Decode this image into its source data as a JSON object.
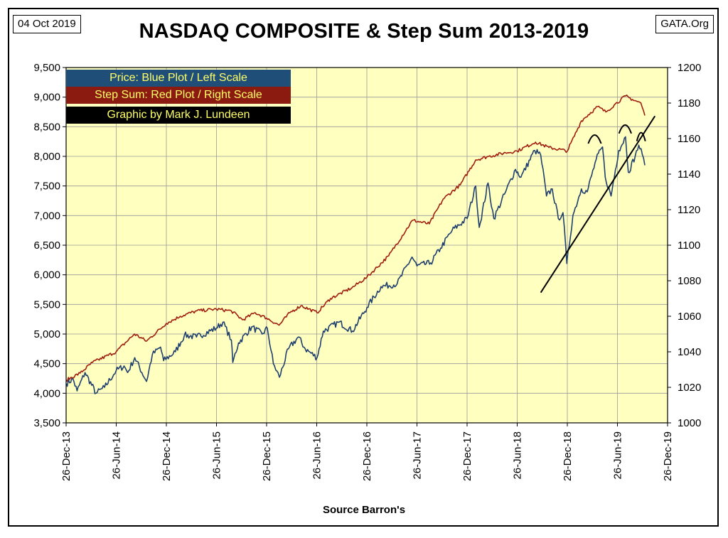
{
  "header": {
    "date": "04 Oct 2019",
    "site": "GATA.Org"
  },
  "legend": {
    "line1": "Price:  Blue Plot / Left Scale",
    "line2": "Step Sum: Red Plot / Right Scale",
    "line3": "Graphic by Mark J. Lundeen"
  },
  "chart_data": {
    "type": "line",
    "title": "NASDAQ COMPOSITE & Step Sum 2013-2019",
    "xlabel": "Source Barron's",
    "grid": true,
    "background_color": "#ffffc0",
    "x_ticks": [
      "26-Dec-13",
      "26-Jun-14",
      "26-Dec-14",
      "26-Jun-15",
      "26-Dec-15",
      "26-Jun-16",
      "26-Dec-16",
      "26-Jun-17",
      "26-Dec-17",
      "26-Jun-18",
      "26-Dec-18",
      "26-Jun-19",
      "26-Dec-19"
    ],
    "y_left": {
      "min": 3500,
      "max": 9500,
      "step": 500,
      "ticks": [
        "3,500",
        "4,000",
        "4,500",
        "5,000",
        "5,500",
        "6,000",
        "6,500",
        "7,000",
        "7,500",
        "8,000",
        "8,500",
        "9,000",
        "9,500"
      ]
    },
    "y_right": {
      "min": 1000,
      "max": 1200,
      "step": 20,
      "ticks": [
        "1000",
        "1020",
        "1040",
        "1060",
        "1080",
        "1100",
        "1120",
        "1140",
        "1160",
        "1180",
        "1200"
      ]
    },
    "series": [
      {
        "color": "#1f3f6e",
        "axis": "left",
        "points": [
          [
            "2013-12-26",
            4160
          ],
          [
            "2014-01-20",
            4240
          ],
          [
            "2014-02-04",
            4040
          ],
          [
            "2014-03-05",
            4350
          ],
          [
            "2014-04-14",
            4000
          ],
          [
            "2014-05-15",
            4100
          ],
          [
            "2014-06-26",
            4380
          ],
          [
            "2014-07-25",
            4460
          ],
          [
            "2014-08-07",
            4350
          ],
          [
            "2014-09-02",
            4600
          ],
          [
            "2014-10-15",
            4200
          ],
          [
            "2014-11-05",
            4650
          ],
          [
            "2014-12-05",
            4780
          ],
          [
            "2014-12-16",
            4550
          ],
          [
            "2015-01-28",
            4700
          ],
          [
            "2015-03-02",
            4980
          ],
          [
            "2015-04-15",
            4950
          ],
          [
            "2015-06-26",
            5100
          ],
          [
            "2015-07-20",
            5200
          ],
          [
            "2015-08-20",
            4900
          ],
          [
            "2015-08-25",
            4520
          ],
          [
            "2015-09-15",
            4850
          ],
          [
            "2015-11-02",
            5120
          ],
          [
            "2015-12-10",
            5000
          ],
          [
            "2015-12-29",
            5100
          ],
          [
            "2016-01-20",
            4500
          ],
          [
            "2016-02-11",
            4270
          ],
          [
            "2016-03-15",
            4750
          ],
          [
            "2016-04-20",
            4950
          ],
          [
            "2016-05-15",
            4750
          ],
          [
            "2016-06-27",
            4600
          ],
          [
            "2016-07-20",
            5050
          ],
          [
            "2016-09-15",
            5200
          ],
          [
            "2016-11-03",
            5050
          ],
          [
            "2016-12-26",
            5450
          ],
          [
            "2017-02-15",
            5800
          ],
          [
            "2017-04-15",
            5850
          ],
          [
            "2017-06-08",
            6300
          ],
          [
            "2017-06-26",
            6150
          ],
          [
            "2017-08-15",
            6200
          ],
          [
            "2017-09-20",
            6450
          ],
          [
            "2017-11-01",
            6750
          ],
          [
            "2017-12-26",
            6950
          ],
          [
            "2018-01-26",
            7500
          ],
          [
            "2018-02-08",
            6800
          ],
          [
            "2018-03-12",
            7550
          ],
          [
            "2018-04-02",
            6950
          ],
          [
            "2018-05-15",
            7400
          ],
          [
            "2018-06-20",
            7780
          ],
          [
            "2018-07-10",
            7650
          ],
          [
            "2018-08-29",
            8100
          ],
          [
            "2018-09-20",
            8020
          ],
          [
            "2018-10-11",
            7330
          ],
          [
            "2018-11-01",
            7450
          ],
          [
            "2018-11-23",
            6950
          ],
          [
            "2018-12-10",
            7050
          ],
          [
            "2018-12-24",
            6190
          ],
          [
            "2019-01-15",
            7000
          ],
          [
            "2019-02-15",
            7450
          ],
          [
            "2019-03-08",
            7400
          ],
          [
            "2019-04-10",
            7950
          ],
          [
            "2019-05-03",
            8160
          ],
          [
            "2019-05-13",
            7650
          ],
          [
            "2019-06-03",
            7330
          ],
          [
            "2019-07-01",
            8100
          ],
          [
            "2019-07-26",
            8330
          ],
          [
            "2019-08-05",
            7730
          ],
          [
            "2019-08-30",
            8000
          ],
          [
            "2019-09-12",
            8190
          ],
          [
            "2019-09-25",
            8030
          ],
          [
            "2019-10-04",
            7850
          ]
        ]
      },
      {
        "color": "#a01d10",
        "axis": "right",
        "points": [
          [
            "2013-12-26",
            1024
          ],
          [
            "2014-02-15",
            1028
          ],
          [
            "2014-04-01",
            1034
          ],
          [
            "2014-06-26",
            1040
          ],
          [
            "2014-09-01",
            1050
          ],
          [
            "2014-10-15",
            1046
          ],
          [
            "2014-12-26",
            1056
          ],
          [
            "2015-02-15",
            1060
          ],
          [
            "2015-04-15",
            1063
          ],
          [
            "2015-06-26",
            1064
          ],
          [
            "2015-08-20",
            1063
          ],
          [
            "2015-09-30",
            1058
          ],
          [
            "2015-11-15",
            1062
          ],
          [
            "2015-12-26",
            1059
          ],
          [
            "2016-02-10",
            1055
          ],
          [
            "2016-03-20",
            1062
          ],
          [
            "2016-04-30",
            1066
          ],
          [
            "2016-06-27",
            1062
          ],
          [
            "2016-08-15",
            1070
          ],
          [
            "2016-11-01",
            1076
          ],
          [
            "2016-12-26",
            1082
          ],
          [
            "2017-03-15",
            1094
          ],
          [
            "2017-06-10",
            1114
          ],
          [
            "2017-08-10",
            1112
          ],
          [
            "2017-09-30",
            1126
          ],
          [
            "2017-12-01",
            1134
          ],
          [
            "2018-01-26",
            1148
          ],
          [
            "2018-03-15",
            1150
          ],
          [
            "2018-05-15",
            1152
          ],
          [
            "2018-06-26",
            1153
          ],
          [
            "2018-09-01",
            1158
          ],
          [
            "2018-10-20",
            1155
          ],
          [
            "2018-12-26",
            1153
          ],
          [
            "2019-02-15",
            1170
          ],
          [
            "2019-04-15",
            1178
          ],
          [
            "2019-05-15",
            1175
          ],
          [
            "2019-06-15",
            1179
          ],
          [
            "2019-07-26",
            1184
          ],
          [
            "2019-08-20",
            1182
          ],
          [
            "2019-09-20",
            1180
          ],
          [
            "2019-10-04",
            1173
          ]
        ]
      }
    ],
    "annotations": {
      "trendline": {
        "from": [
          "2018-09-20",
          5700
        ],
        "to": [
          "2019-11-10",
          8680
        ],
        "color": "#000000"
      },
      "arcs": [
        {
          "start": "2019-03-12",
          "end": "2019-04-28",
          "top": 8360
        },
        {
          "start": "2019-07-02",
          "end": "2019-08-16",
          "top": 8530
        },
        {
          "start": "2019-09-05",
          "end": "2019-10-06",
          "top": 8400
        }
      ]
    }
  }
}
